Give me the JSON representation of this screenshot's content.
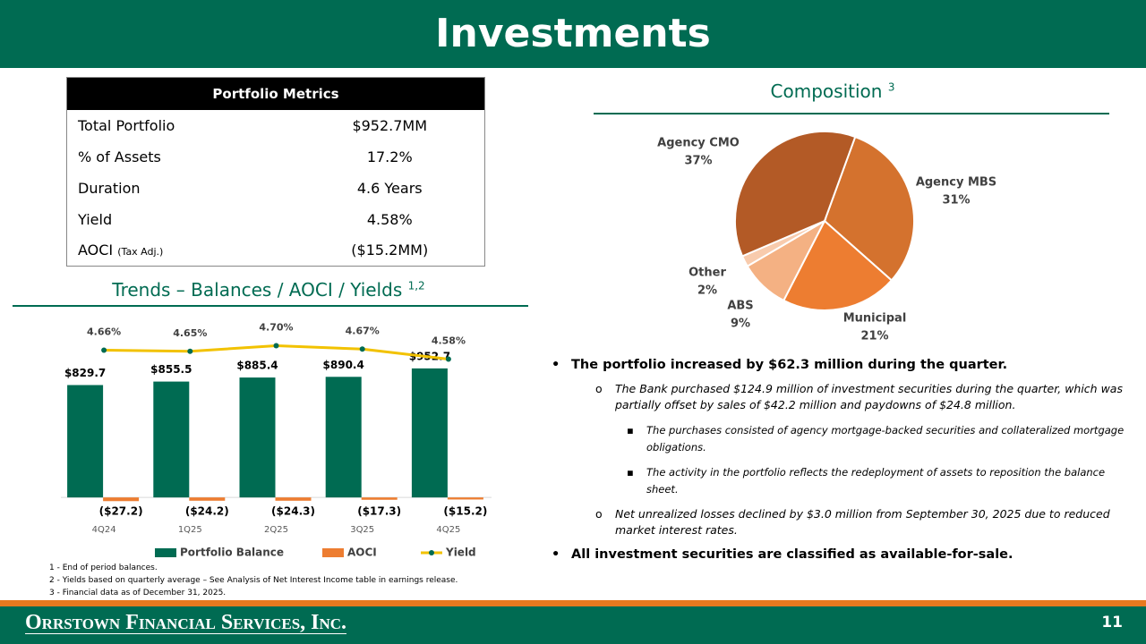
{
  "header": {
    "title": "Investments"
  },
  "table": {
    "title": "Portfolio Metrics",
    "rows": [
      {
        "label": "Total Portfolio",
        "value": "$952.7MM"
      },
      {
        "label": "% of Assets",
        "value": "17.2%"
      },
      {
        "label": "Duration",
        "value": "4.6 Years"
      },
      {
        "label": "Yield",
        "value": "4.58%"
      },
      {
        "label": "AOCI",
        "note": "(Tax Adj.)",
        "value": "($15.2MM)"
      }
    ]
  },
  "chart_data": [
    {
      "type": "bar",
      "title": "Trends – Balances / AOCI / Yields",
      "title_note": "1,2",
      "categories": [
        "4Q24",
        "1Q25",
        "2Q25",
        "3Q25",
        "4Q25"
      ],
      "ylim": [
        -250,
        1500
      ],
      "y2lim": [
        3.04,
        5.16
      ],
      "series": [
        {
          "name": "Portfolio Balance",
          "color": "#006b52",
          "values": [
            829.7,
            855.5,
            885.4,
            890.4,
            952.7
          ],
          "value_labels": [
            "$829.7",
            "$855.5",
            "$885.4",
            "$890.4",
            "$952.7"
          ]
        },
        {
          "name": "AOCI",
          "color": "#ed7d31",
          "values": [
            -27.2,
            -24.2,
            -24.3,
            -17.3,
            -15.2
          ],
          "value_labels": [
            "($27.2)",
            "($24.2)",
            "($24.3)",
            "($17.3)",
            "($15.2)"
          ]
        },
        {
          "name": "Yield",
          "type": "line",
          "axis": "y2",
          "color": "#f2c200",
          "marker_color": "#006b52",
          "values": [
            4.66,
            4.65,
            4.7,
            4.67,
            4.58
          ],
          "value_labels": [
            "4.66%",
            "4.65%",
            "4.70%",
            "4.67%",
            "4.58%"
          ]
        }
      ]
    },
    {
      "type": "pie",
      "title": "Composition",
      "title_note": "3",
      "categories": [
        "Agency MBS",
        "Municipal",
        "ABS",
        "Other",
        "Agency CMO"
      ],
      "values": [
        31,
        21,
        9,
        2,
        37
      ],
      "value_labels": [
        "31%",
        "21%",
        "9%",
        "2%",
        "37%"
      ],
      "colors": [
        "#d4722e",
        "#ed7d31",
        "#f4b183",
        "#f8cbad",
        "#b35a26"
      ]
    }
  ],
  "bullets": [
    {
      "level": 1,
      "text": "The portfolio increased by $62.3 million during the quarter."
    },
    {
      "level": 2,
      "text": "The Bank purchased $124.9 million of investment securities during the quarter, which was partially offset by sales of $42.2 million and paydowns of $24.8 million."
    },
    {
      "level": 3,
      "text": "The purchases consisted of agency mortgage-backed securities and collateralized mortgage obligations."
    },
    {
      "level": 3,
      "text": "The activity in the portfolio reflects the redeployment of assets to reposition the balance sheet."
    },
    {
      "level": 2,
      "text": "Net unrealized losses declined by $3.0 million from September 30, 2025 due to reduced market interest rates."
    },
    {
      "level": 1,
      "text": "All investment securities are classified as available-for-sale."
    }
  ],
  "footnotes": [
    "1 - End of period balances.",
    "2 - Yields based on quarterly average – See Analysis of Net Interest Income table in earnings release.",
    "3 - Financial data as of December 31, 2025."
  ],
  "footer": {
    "company": "Orrstown Financial Services, Inc.",
    "page": "11"
  }
}
